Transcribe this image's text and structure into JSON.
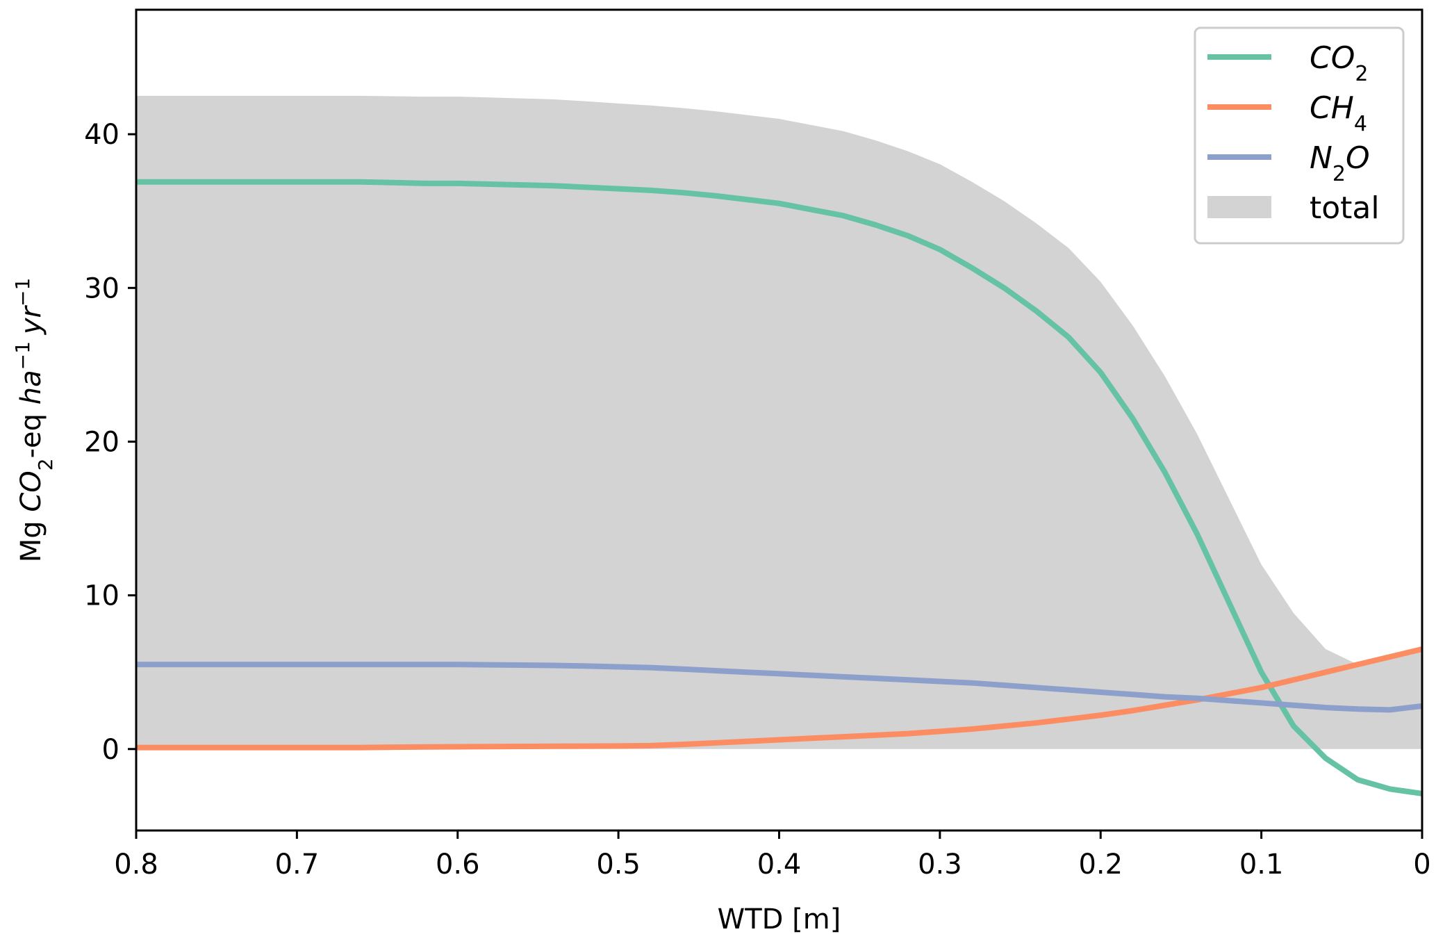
{
  "chart_data": {
    "type": "line",
    "xlabel": "WTD [m]",
    "ylabel": {
      "prefix": "Mg ",
      "species": "CO",
      "species_sub": "2",
      "middle": "-eq ",
      "unit1": "ha",
      "exp1": "−1",
      "unit2": "yr",
      "exp2": "−1"
    },
    "xlim": [
      0.8,
      0
    ],
    "ylim": [
      -5.3,
      48.1
    ],
    "x_ticks": [
      0.8,
      0.7,
      0.6,
      0.5,
      0.4,
      0.3,
      0.2,
      0.1,
      0
    ],
    "x_tick_labels": [
      "0.8",
      "0.7",
      "0.6",
      "0.5",
      "0.4",
      "0.3",
      "0.2",
      "0.1",
      "0"
    ],
    "y_ticks": [
      0,
      10,
      20,
      30,
      40
    ],
    "y_tick_labels": [
      "0",
      "10",
      "20",
      "30",
      "40"
    ],
    "grid": false,
    "legend_position": "top-right",
    "x": [
      0.8,
      0.78,
      0.76,
      0.74,
      0.72,
      0.7,
      0.68,
      0.66,
      0.64,
      0.62,
      0.6,
      0.58,
      0.56,
      0.54,
      0.52,
      0.5,
      0.48,
      0.46,
      0.44,
      0.42,
      0.4,
      0.38,
      0.36,
      0.34,
      0.32,
      0.3,
      0.28,
      0.26,
      0.24,
      0.22,
      0.2,
      0.18,
      0.16,
      0.14,
      0.12,
      0.1,
      0.08,
      0.06,
      0.04,
      0.02,
      0.0
    ],
    "series": [
      {
        "name": "CO",
        "name_sub": "2",
        "color": "#66c2a5",
        "values": [
          36.9,
          36.9,
          36.9,
          36.9,
          36.9,
          36.9,
          36.9,
          36.9,
          36.85,
          36.8,
          36.8,
          36.75,
          36.7,
          36.65,
          36.55,
          36.45,
          36.35,
          36.2,
          36.0,
          35.75,
          35.5,
          35.1,
          34.7,
          34.1,
          33.4,
          32.5,
          31.3,
          30.0,
          28.5,
          26.8,
          24.5,
          21.5,
          18.0,
          14.0,
          9.5,
          5.0,
          1.5,
          -0.6,
          -2.0,
          -2.6,
          -2.9
        ]
      },
      {
        "name": "CH",
        "name_sub": "4",
        "color": "#fc8d62",
        "values": [
          0.1,
          0.1,
          0.1,
          0.1,
          0.1,
          0.1,
          0.1,
          0.1,
          0.12,
          0.14,
          0.15,
          0.16,
          0.17,
          0.18,
          0.19,
          0.2,
          0.22,
          0.3,
          0.4,
          0.5,
          0.6,
          0.7,
          0.8,
          0.9,
          1.0,
          1.15,
          1.3,
          1.5,
          1.7,
          1.95,
          2.2,
          2.5,
          2.85,
          3.2,
          3.6,
          4.0,
          4.5,
          5.0,
          5.5,
          6.0,
          6.5
        ]
      },
      {
        "name": "N",
        "name_sub": "2",
        "name_suffix": "O",
        "color": "#8da0cb",
        "values": [
          5.5,
          5.5,
          5.5,
          5.5,
          5.5,
          5.5,
          5.5,
          5.5,
          5.5,
          5.5,
          5.5,
          5.48,
          5.46,
          5.44,
          5.4,
          5.35,
          5.3,
          5.2,
          5.1,
          5.0,
          4.9,
          4.8,
          4.7,
          4.6,
          4.5,
          4.4,
          4.3,
          4.15,
          4.0,
          3.85,
          3.7,
          3.55,
          3.4,
          3.3,
          3.15,
          3.0,
          2.85,
          2.7,
          2.6,
          2.55,
          2.8
        ]
      }
    ],
    "total": {
      "name": "total",
      "color": "#d3d3d3",
      "values": [
        42.5,
        42.5,
        42.5,
        42.5,
        42.5,
        42.5,
        42.5,
        42.5,
        42.47,
        42.44,
        42.45,
        42.39,
        42.33,
        42.27,
        42.14,
        42.0,
        41.87,
        41.7,
        41.5,
        41.25,
        41.0,
        40.6,
        40.2,
        39.6,
        38.9,
        38.05,
        36.9,
        35.65,
        34.2,
        32.6,
        30.4,
        27.55,
        24.25,
        20.5,
        16.25,
        12.0,
        8.85,
        6.5,
        5.5,
        6.0,
        6.7
      ]
    }
  }
}
